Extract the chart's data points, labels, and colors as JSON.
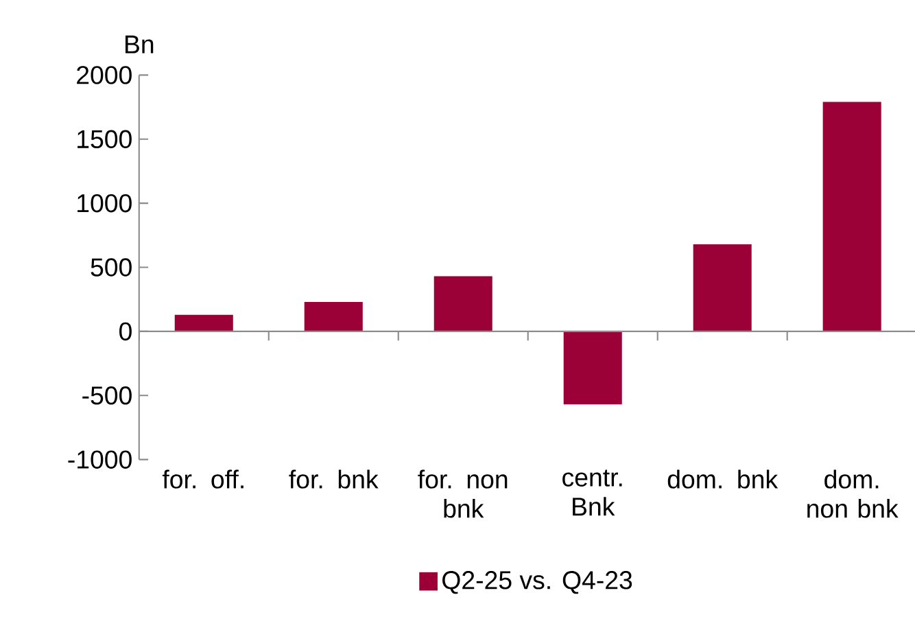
{
  "chart_data": {
    "type": "bar",
    "ylabel": "Bn",
    "categories": [
      "for. off.",
      "for. bnk",
      "for. non bnk",
      "centr. Bnk",
      "dom. bnk",
      "dom. non bnk"
    ],
    "series": [
      {
        "name": "Q2-25 vs. Q4-23",
        "color": "#9b0036",
        "values": [
          130,
          230,
          430,
          -570,
          680,
          1790
        ]
      }
    ],
    "ylim": [
      -1000,
      2000
    ],
    "yticks": [
      -1000,
      -500,
      0,
      500,
      1000,
      1500,
      2000
    ],
    "legend": "bottom"
  }
}
